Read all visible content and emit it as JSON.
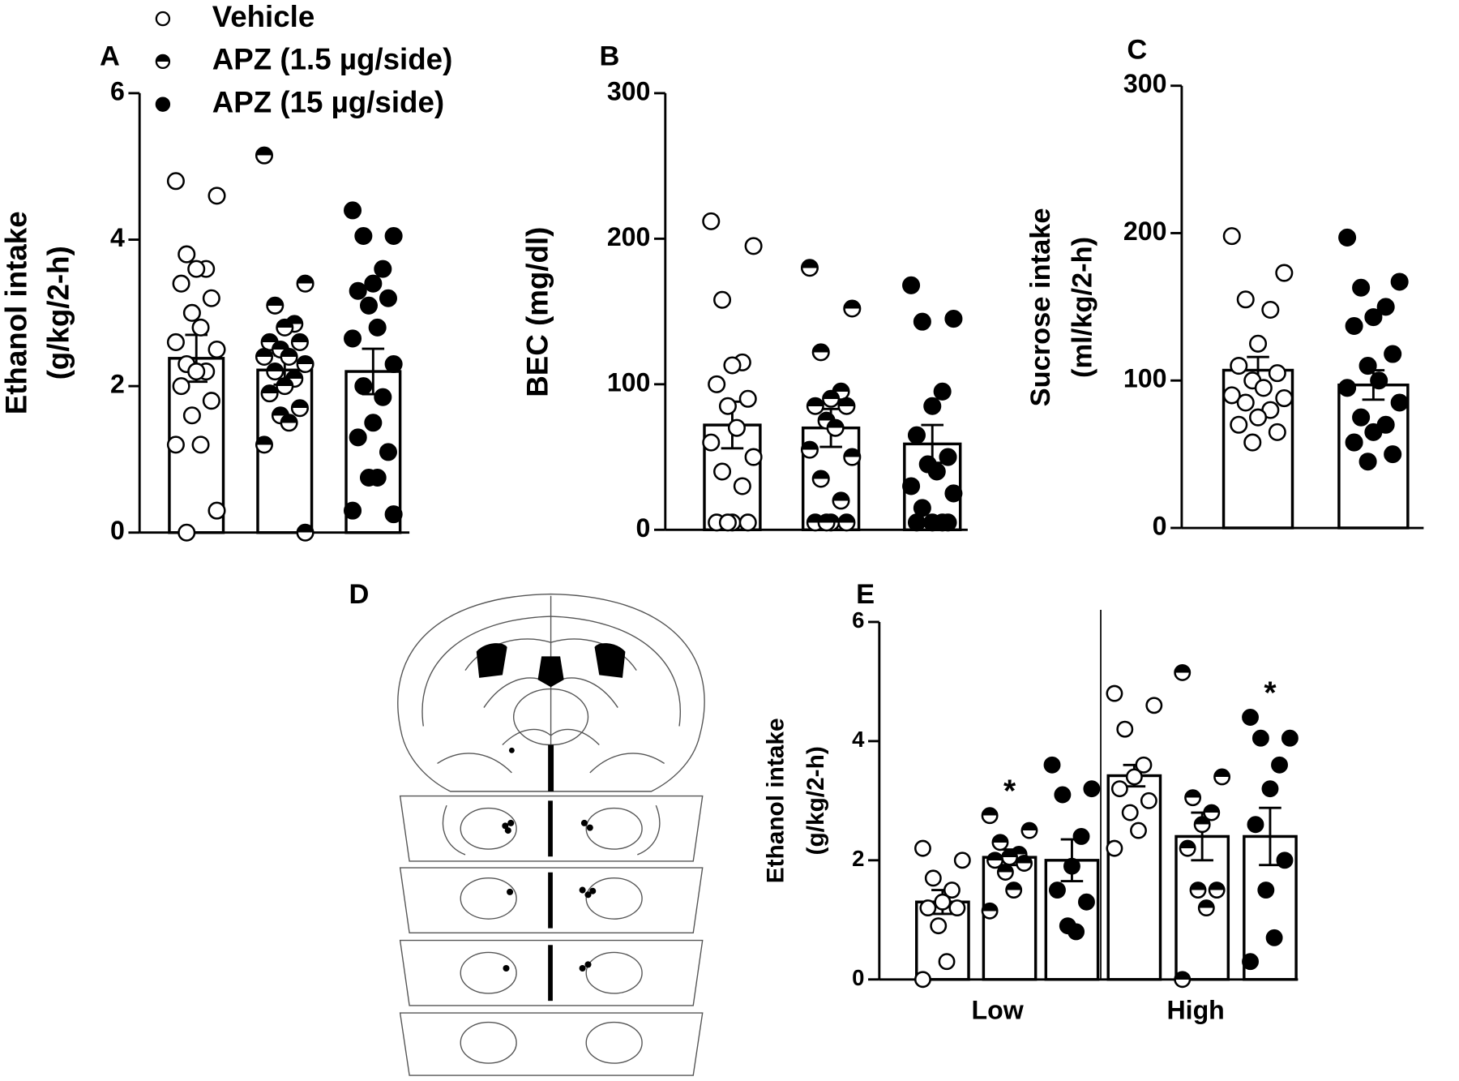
{
  "chart_data": [
    {
      "type": "bar",
      "panel": "A",
      "ylabel": [
        "Ethanol intake",
        "(g/kg/2-h)"
      ],
      "categories": [
        null
      ],
      "ylim": [
        0,
        6
      ],
      "yticks": [
        0,
        2,
        4,
        6
      ],
      "series": [
        {
          "name": "Vehicle",
          "marker": "open",
          "values": [
            2.38
          ],
          "errors": [
            0.32
          ],
          "points": [
            [
              4.8,
              4.6,
              3.8,
              3.6,
              3.6,
              3.4,
              3.2,
              3.0,
              2.8,
              2.6,
              2.5,
              2.3,
              2.2,
              2.2,
              2.0,
              1.8,
              1.6,
              1.2,
              1.2,
              0.3,
              0.0
            ]
          ]
        },
        {
          "name": "APZ (1.5 µg/side)",
          "marker": "half",
          "values": [
            2.22
          ],
          "errors": [
            0.2
          ],
          "points": [
            [
              5.15,
              3.4,
              3.1,
              2.85,
              2.8,
              2.6,
              2.6,
              2.5,
              2.4,
              2.4,
              2.3,
              2.2,
              2.1,
              2.0,
              1.9,
              1.7,
              1.6,
              1.5,
              1.2,
              0.0
            ]
          ]
        },
        {
          "name": "APZ (15 µg/side)",
          "marker": "filled",
          "values": [
            2.2
          ],
          "errors": [
            0.31
          ],
          "points": [
            [
              4.4,
              4.05,
              4.05,
              3.6,
              3.4,
              3.3,
              3.2,
              3.1,
              2.8,
              2.65,
              2.3,
              2.0,
              1.85,
              1.5,
              1.3,
              1.1,
              0.75,
              0.75,
              0.3,
              0.25
            ]
          ]
        }
      ]
    },
    {
      "type": "bar",
      "panel": "B",
      "ylabel": [
        "BEC (mg/dl)"
      ],
      "categories": [
        null
      ],
      "ylim": [
        0,
        300
      ],
      "yticks": [
        0,
        100,
        200,
        300
      ],
      "series": [
        {
          "marker": "open",
          "values": [
            72
          ],
          "errors": [
            16
          ],
          "points": [
            [
              212,
              195,
              158,
              115,
              113,
              100,
              90,
              85,
              70,
              60,
              50,
              40,
              30,
              5,
              5,
              5,
              5
            ]
          ]
        },
        {
          "marker": "half",
          "values": [
            70
          ],
          "errors": [
            13
          ],
          "points": [
            [
              180,
              152,
              122,
              95,
              90,
              85,
              85,
              75,
              70,
              55,
              50,
              35,
              20,
              5,
              5,
              5,
              5
            ]
          ]
        },
        {
          "marker": "filled",
          "values": [
            59
          ],
          "errors": [
            13
          ],
          "points": [
            [
              168,
              145,
              143,
              95,
              85,
              65,
              50,
              45,
              40,
              30,
              25,
              15,
              5,
              5,
              5,
              5
            ]
          ]
        }
      ]
    },
    {
      "type": "bar",
      "panel": "C",
      "ylabel": [
        "Sucrose intake",
        "(ml/kg/2-h)"
      ],
      "categories": [
        null
      ],
      "ylim": [
        0,
        300
      ],
      "yticks": [
        0,
        100,
        200,
        300
      ],
      "series": [
        {
          "marker": "open",
          "values": [
            107
          ],
          "errors": [
            9
          ],
          "points": [
            [
              198,
              173,
              155,
              148,
              125,
              110,
              105,
              100,
              95,
              90,
              88,
              85,
              80,
              75,
              70,
              65,
              58
            ]
          ]
        },
        {
          "marker": "filled",
          "values": [
            97
          ],
          "errors": [
            10
          ],
          "points": [
            [
              197,
              167,
              163,
              150,
              143,
              137,
              118,
              110,
              100,
              95,
              85,
              75,
              70,
              65,
              58,
              50,
              45
            ]
          ]
        }
      ]
    },
    {
      "type": "bar",
      "panel": "E",
      "ylabel": [
        "Ethanol intake",
        "(g/kg/2-h)"
      ],
      "categories": [
        "Low",
        "High"
      ],
      "ylim": [
        0,
        6
      ],
      "yticks": [
        0,
        2,
        4,
        6
      ],
      "series": [
        {
          "marker": "open",
          "values": [
            1.3,
            3.42
          ],
          "errors": [
            0.2,
            0.18
          ],
          "stars": [
            null,
            null
          ],
          "points": [
            [
              2.2,
              2.0,
              1.7,
              1.5,
              1.3,
              1.2,
              1.2,
              0.9,
              0.3,
              0.0
            ],
            [
              4.8,
              4.6,
              4.2,
              3.6,
              3.4,
              3.2,
              3.0,
              2.8,
              2.5,
              2.2
            ]
          ]
        },
        {
          "marker": "half",
          "values": [
            2.05,
            2.4
          ],
          "errors": [
            0.13,
            0.4
          ],
          "stars": [
            "*",
            null
          ],
          "points": [
            [
              2.75,
              2.5,
              2.3,
              2.1,
              2.05,
              2.0,
              1.95,
              1.8,
              1.5,
              1.15
            ],
            [
              5.15,
              3.4,
              3.05,
              2.8,
              2.6,
              2.2,
              1.5,
              1.5,
              1.2,
              0.0
            ]
          ]
        },
        {
          "marker": "filled",
          "values": [
            2.0,
            2.4
          ],
          "errors": [
            0.35,
            0.48
          ],
          "stars": [
            null,
            "*"
          ],
          "points": [
            [
              3.6,
              3.2,
              3.1,
              2.4,
              1.9,
              1.5,
              1.3,
              0.9,
              0.8
            ],
            [
              4.4,
              4.05,
              4.05,
              3.6,
              3.2,
              2.6,
              2.0,
              1.5,
              0.7,
              0.3
            ]
          ]
        }
      ]
    }
  ],
  "diagram": {
    "panel": "D"
  }
}
